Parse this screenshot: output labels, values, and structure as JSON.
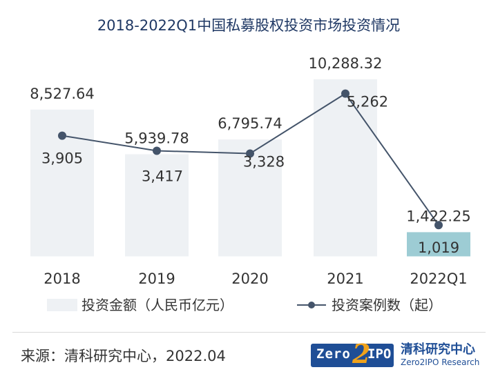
{
  "chart_data": {
    "type": "bar+line",
    "title": "2018-2022Q1中国私募股权投资市场投资情况",
    "categories": [
      "2018",
      "2019",
      "2020",
      "2021",
      "2022Q1"
    ],
    "series": [
      {
        "name": "投资金额（人民币亿元）",
        "type": "bar",
        "values": [
          8527.64,
          5939.78,
          6795.74,
          10288.32,
          1422.25
        ],
        "labels": [
          "8,527.64",
          "5,939.78",
          "6,795.74",
          "10,288.32",
          "1,422.25"
        ]
      },
      {
        "name": "投资案例数（起）",
        "type": "line",
        "values": [
          3905,
          3417,
          3328,
          5262,
          1019
        ],
        "labels": [
          "3,905",
          "3,417",
          "3,328",
          "5,262",
          "1,019"
        ]
      }
    ],
    "bar_axis_range": [
      0,
      12000
    ],
    "line_axis_range": [
      0,
      6500
    ],
    "grid": false,
    "legend": "bottom",
    "colors": {
      "bar": "#eef1f4",
      "bar_highlight": "#9dccd4",
      "line": "#44546a",
      "marker": "#44546a"
    }
  },
  "footer": {
    "source": "来源：清科研究中心，2022.04",
    "logo_text_zero": "Zero",
    "logo_text_two": "2",
    "logo_text_ipo": "IPO",
    "logo_text_cn": "清科研究中心",
    "logo_text_en": "Zero2IPO Research"
  }
}
